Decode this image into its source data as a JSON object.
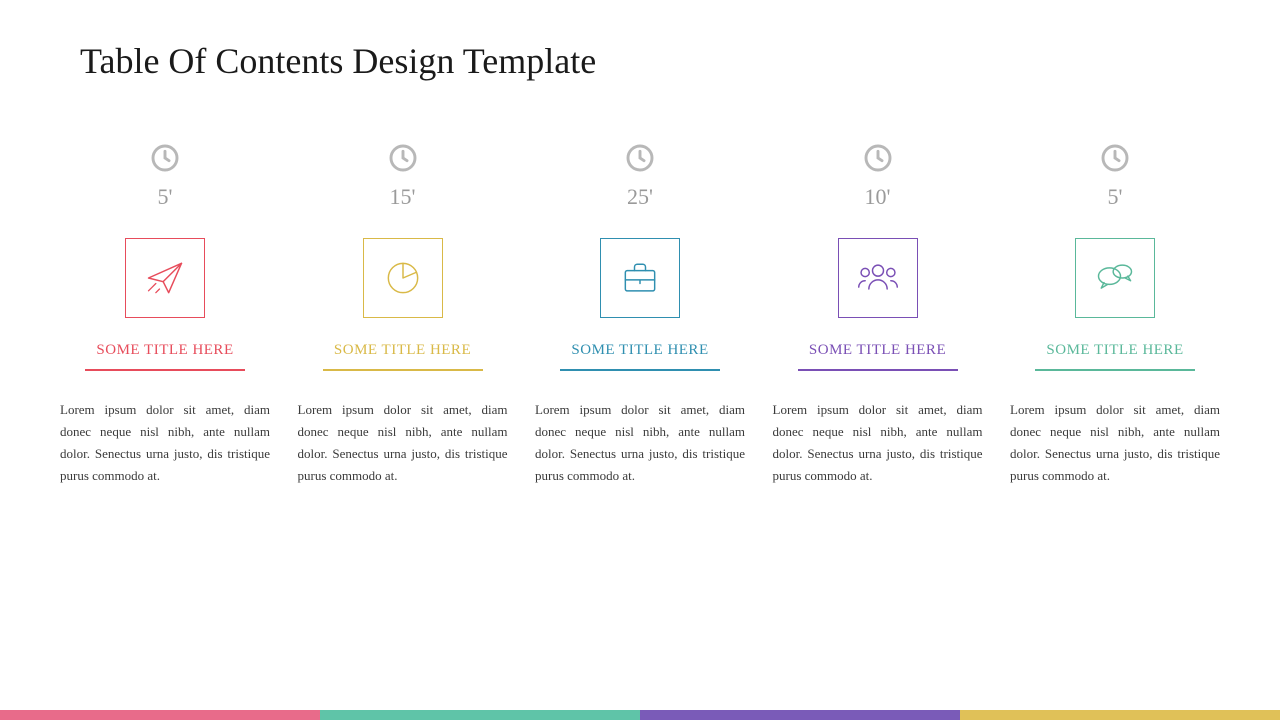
{
  "title": "Table Of Contents Design Template",
  "colors": {
    "clock": "#b8b8b8",
    "duration_text": "#9a9a9a",
    "body_text": "#3a3a3a",
    "title_text": "#1a1a1a"
  },
  "columns": [
    {
      "duration": "5'",
      "icon": "paper-plane",
      "color": "#e74c5b",
      "title": "SOME TITLE HERE",
      "body": "Lorem ipsum dolor sit amet, diam donec neque nisl nibh, ante nullam dolor. Senectus urna justo, dis tristique purus commodo at."
    },
    {
      "duration": "15'",
      "icon": "pie-chart",
      "color": "#d9b947",
      "title": "SOME TITLE HERE",
      "body": "Lorem ipsum dolor sit amet, diam donec neque nisl nibh, ante nullam dolor. Senectus urna justo, dis tristique purus commodo at."
    },
    {
      "duration": "25'",
      "icon": "briefcase",
      "color": "#2f8fb0",
      "title": "SOME TITLE HERE",
      "body": "Lorem ipsum dolor sit amet, diam donec neque nisl nibh, ante nullam dolor. Senectus urna justo, dis tristique purus commodo at."
    },
    {
      "duration": "10'",
      "icon": "people",
      "color": "#7a4fb5",
      "title": "SOME TITLE HERE",
      "body": "Lorem ipsum dolor sit amet, diam donec neque nisl nibh, ante nullam dolor. Senectus urna justo, dis tristique purus commodo at."
    },
    {
      "duration": "5'",
      "icon": "chat-bubbles",
      "color": "#5ab89a",
      "title": "SOME TITLE HERE",
      "body": "Lorem ipsum dolor sit amet, diam donec neque nisl nibh, ante nullam dolor. Senectus urna justo, dis tristique purus commodo at."
    }
  ],
  "footer_colors": [
    "#e86b8a",
    "#5fc4a8",
    "#7a5bb8",
    "#e0c158"
  ]
}
